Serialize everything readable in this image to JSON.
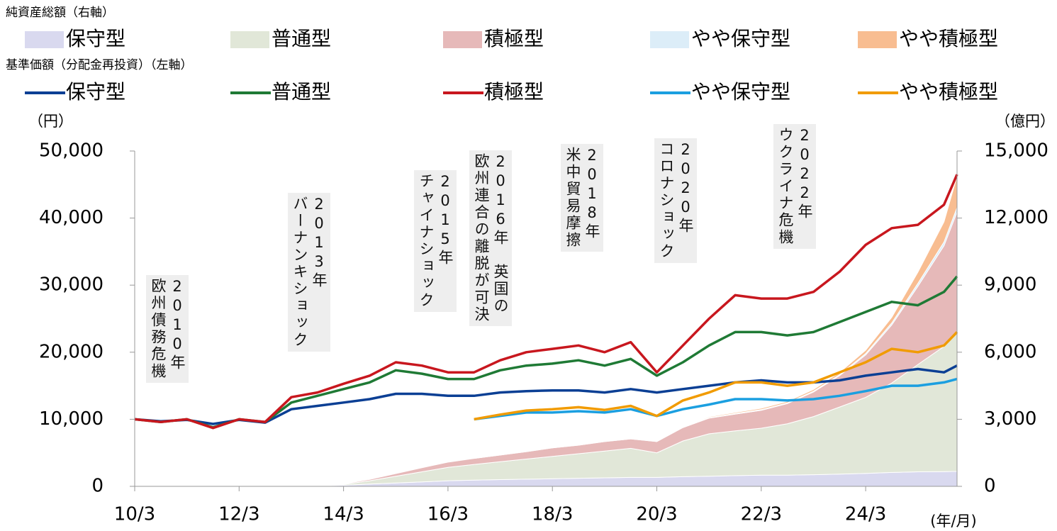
{
  "chart_data": {
    "type": "line",
    "area_legend_title": "純資産総額（右軸）",
    "line_legend_title": "基準価額（分配金再投資）（左軸）",
    "y_label": "（円）",
    "y2_label": "（億円）",
    "x_label": "(年/月)",
    "x": [
      "10/3",
      "10/9",
      "11/3",
      "11/9",
      "12/3",
      "12/9",
      "13/3",
      "13/9",
      "14/3",
      "14/9",
      "15/3",
      "15/9",
      "16/3",
      "16/9",
      "17/3",
      "17/9",
      "18/3",
      "18/9",
      "19/3",
      "19/9",
      "20/3",
      "20/9",
      "21/3",
      "21/9",
      "22/3",
      "22/9",
      "23/3",
      "23/9",
      "24/3",
      "24/9",
      "25/3",
      "25/9",
      "25/12"
    ],
    "xlim": [
      "10/3",
      "25/12"
    ],
    "xticks": [
      "10/3",
      "12/3",
      "14/3",
      "16/3",
      "18/3",
      "20/3",
      "22/3",
      "24/3"
    ],
    "ylim": [
      0,
      50000
    ],
    "yticks": [
      0,
      {
        "value": 10000,
        "label": "10,000"
      },
      {
        "value": 20000,
        "label": "20,000"
      },
      {
        "value": 30000,
        "label": "30,000"
      },
      {
        "value": 40000,
        "label": "40,000"
      },
      {
        "value": 50000,
        "label": "50,000"
      }
    ],
    "y2lim": [
      0,
      15000
    ],
    "y2ticks": [
      0,
      {
        "value": 3000,
        "label": "3,000"
      },
      {
        "value": 6000,
        "label": "6,000"
      },
      {
        "value": 9000,
        "label": "9,000"
      },
      {
        "value": 12000,
        "label": "12,000"
      },
      {
        "value": 15000,
        "label": "15,000"
      }
    ],
    "areas": [
      {
        "name": "保守型",
        "color": "#d9d9ef",
        "axis": "y2",
        "values": [
          0,
          0,
          0,
          0,
          0,
          0,
          0,
          20,
          50,
          100,
          150,
          200,
          250,
          280,
          300,
          320,
          340,
          360,
          380,
          400,
          400,
          430,
          450,
          480,
          500,
          500,
          520,
          550,
          580,
          620,
          650,
          660,
          670
        ]
      },
      {
        "name": "普通型",
        "color": "#e1e7d8",
        "axis": "y2",
        "values": [
          0,
          0,
          0,
          0,
          0,
          0,
          0,
          10,
          40,
          150,
          300,
          450,
          600,
          700,
          800,
          900,
          1000,
          1100,
          1200,
          1300,
          1100,
          1600,
          1900,
          2000,
          2100,
          2300,
          2600,
          3000,
          3400,
          4000,
          4800,
          5600,
          6200
        ]
      },
      {
        "name": "積極型",
        "color": "#e6b9b9",
        "axis": "y2",
        "values": [
          0,
          0,
          0,
          0,
          0,
          0,
          0,
          5,
          20,
          60,
          120,
          180,
          230,
          270,
          300,
          330,
          380,
          380,
          420,
          420,
          500,
          600,
          700,
          750,
          800,
          900,
          1100,
          1400,
          1900,
          2600,
          3500,
          4500,
          5400
        ]
      },
      {
        "name": "やや保守型",
        "color": "#dcedf8",
        "axis": "y2",
        "values": [
          null,
          null,
          null,
          null,
          null,
          null,
          null,
          null,
          null,
          null,
          null,
          null,
          null,
          2,
          5,
          8,
          10,
          12,
          14,
          16,
          15,
          18,
          22,
          26,
          30,
          32,
          36,
          45,
          60,
          90,
          130,
          170,
          200
        ]
      },
      {
        "name": "やや積極型",
        "color": "#f8bd91",
        "axis": "y2",
        "values": [
          null,
          null,
          null,
          null,
          null,
          null,
          null,
          null,
          null,
          null,
          null,
          null,
          null,
          3,
          8,
          12,
          16,
          20,
          22,
          25,
          24,
          30,
          40,
          50,
          60,
          65,
          75,
          100,
          150,
          250,
          500,
          900,
          1400
        ]
      }
    ],
    "series": [
      {
        "name": "保守型",
        "color": "#0b3f94",
        "values": [
          10000,
          9700,
          9900,
          9300,
          9900,
          9500,
          11500,
          12000,
          12500,
          13000,
          13800,
          13800,
          13500,
          13500,
          14000,
          14200,
          14300,
          14300,
          14000,
          14500,
          14000,
          14500,
          15000,
          15500,
          15800,
          15500,
          15500,
          15800,
          16500,
          17000,
          17500,
          17000,
          18000
        ]
      },
      {
        "name": "普通型",
        "color": "#1f7a35",
        "values": [
          10000,
          9600,
          10000,
          8800,
          10000,
          9600,
          12500,
          13500,
          14500,
          15500,
          17300,
          16800,
          16000,
          16000,
          17300,
          18000,
          18300,
          18800,
          18000,
          19000,
          16500,
          18500,
          21000,
          23000,
          23000,
          22500,
          23000,
          24500,
          26000,
          27500,
          27000,
          29000,
          31300
        ]
      },
      {
        "name": "積極型",
        "color": "#c8171e",
        "values": [
          10000,
          9600,
          10000,
          8700,
          10000,
          9600,
          13300,
          14000,
          15300,
          16500,
          18500,
          18000,
          17000,
          17000,
          18800,
          20000,
          20500,
          21000,
          20000,
          21500,
          17000,
          21000,
          25000,
          28500,
          28000,
          28000,
          29000,
          32000,
          36000,
          38500,
          39000,
          42000,
          46500
        ]
      },
      {
        "name": "やや保守型",
        "color": "#1b9fe0",
        "values": [
          null,
          null,
          null,
          null,
          null,
          null,
          null,
          null,
          null,
          null,
          null,
          null,
          null,
          10000,
          10500,
          11000,
          11000,
          11200,
          11000,
          11500,
          10500,
          11500,
          12200,
          13000,
          13000,
          12800,
          13000,
          13500,
          14200,
          15000,
          15000,
          15500,
          16000
        ]
      },
      {
        "name": "やや積極型",
        "color": "#f19b00",
        "values": [
          null,
          null,
          null,
          null,
          null,
          null,
          null,
          null,
          null,
          null,
          null,
          null,
          null,
          10000,
          10700,
          11300,
          11500,
          11800,
          11400,
          12000,
          10500,
          12800,
          14000,
          15500,
          15500,
          15000,
          15500,
          17000,
          18500,
          20500,
          20000,
          21000,
          23000
        ]
      }
    ],
    "annotations": [
      {
        "lines": [
          "2010年",
          "欧州債務危機"
        ]
      },
      {
        "lines": [
          "2013年",
          "バーナンキショック"
        ]
      },
      {
        "lines": [
          "2015年",
          "チャイナショック"
        ]
      },
      {
        "lines": [
          "2016年　英国の",
          "欧州連合の離脱が可決"
        ]
      },
      {
        "lines": [
          "2018年",
          "米中貿易摩擦"
        ]
      },
      {
        "lines": [
          "2020年",
          "コロナショック"
        ]
      },
      {
        "lines": [
          "2022年",
          "ウクライナ危機"
        ]
      }
    ]
  }
}
